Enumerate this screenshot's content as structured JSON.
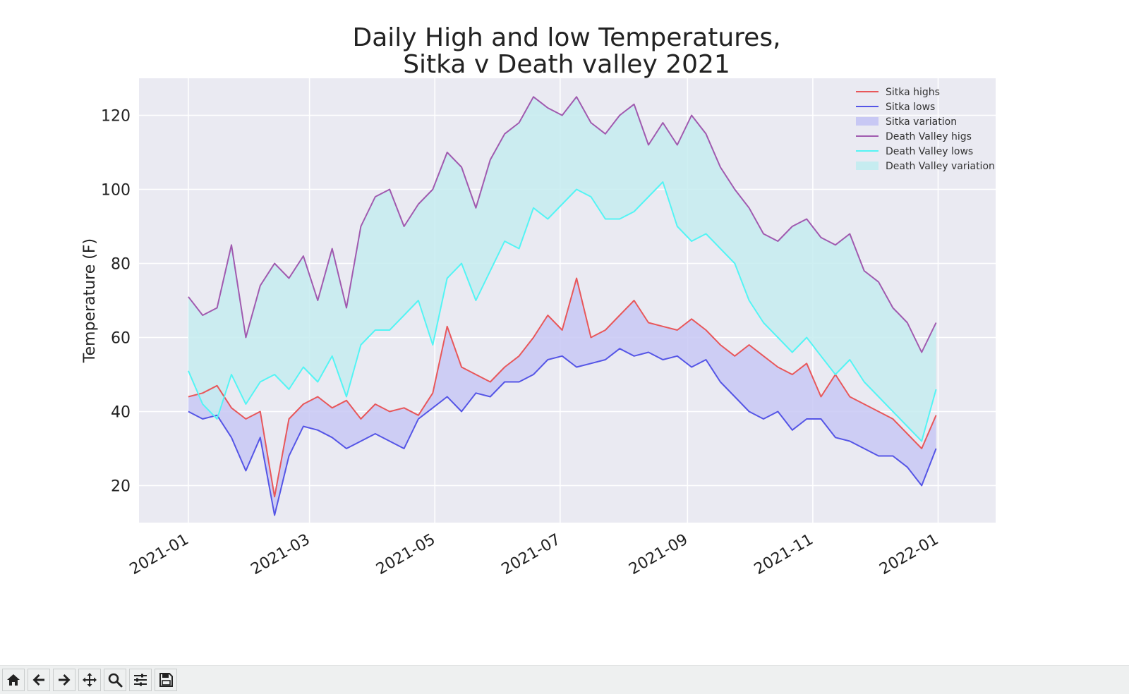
{
  "toolbar": {
    "buttons": [
      {
        "name": "home-icon"
      },
      {
        "name": "back-icon"
      },
      {
        "name": "forward-icon"
      },
      {
        "name": "pan-icon"
      },
      {
        "name": "zoom-icon"
      },
      {
        "name": "configure-subplots-icon"
      },
      {
        "name": "save-icon"
      }
    ]
  },
  "chart_data": {
    "type": "line",
    "title": [
      "Daily High and low Temperatures,",
      "Sitka v Death valley 2021"
    ],
    "xlabel": "",
    "ylabel": "Temperature (F)",
    "xlim": [
      "2020-12-08",
      "2022-01-29"
    ],
    "ylim": [
      10,
      130
    ],
    "x_ticks": [
      "2021-01",
      "2021-03",
      "2021-05",
      "2021-07",
      "2021-09",
      "2021-11",
      "2022-01"
    ],
    "y_ticks": [
      20,
      40,
      60,
      80,
      100,
      120
    ],
    "grid": true,
    "legend_position": "top-right",
    "colors": {
      "sitka_high": "#e8575a",
      "sitka_low": "#5555e6",
      "sitka_fill": "#c8c8f4",
      "dv_high": "#a05aaf",
      "dv_low": "#54f4f4",
      "dv_fill": "#c6ecf0",
      "plot_bg": "#eaeaf2"
    },
    "x": [
      "2021-01-01",
      "2021-01-08",
      "2021-01-15",
      "2021-01-22",
      "2021-01-29",
      "2021-02-05",
      "2021-02-12",
      "2021-02-19",
      "2021-02-26",
      "2021-03-05",
      "2021-03-12",
      "2021-03-19",
      "2021-03-26",
      "2021-04-02",
      "2021-04-09",
      "2021-04-16",
      "2021-04-23",
      "2021-04-30",
      "2021-05-07",
      "2021-05-14",
      "2021-05-21",
      "2021-05-28",
      "2021-06-04",
      "2021-06-11",
      "2021-06-18",
      "2021-06-25",
      "2021-07-02",
      "2021-07-09",
      "2021-07-16",
      "2021-07-23",
      "2021-07-30",
      "2021-08-06",
      "2021-08-13",
      "2021-08-20",
      "2021-08-27",
      "2021-09-03",
      "2021-09-10",
      "2021-09-17",
      "2021-09-24",
      "2021-10-01",
      "2021-10-08",
      "2021-10-15",
      "2021-10-22",
      "2021-10-29",
      "2021-11-05",
      "2021-11-12",
      "2021-11-19",
      "2021-11-26",
      "2021-12-03",
      "2021-12-10",
      "2021-12-17",
      "2021-12-24",
      "2021-12-31"
    ],
    "series": [
      {
        "name": "Sitka highs",
        "key": "sitka_high",
        "values": [
          44,
          45,
          47,
          41,
          38,
          40,
          17,
          38,
          42,
          44,
          41,
          43,
          38,
          42,
          40,
          41,
          39,
          45,
          63,
          52,
          50,
          48,
          52,
          55,
          60,
          66,
          62,
          76,
          60,
          62,
          66,
          70,
          64,
          63,
          62,
          65,
          62,
          58,
          55,
          58,
          55,
          52,
          50,
          53,
          44,
          50,
          44,
          42,
          40,
          38,
          34,
          30,
          39
        ]
      },
      {
        "name": "Sitka lows",
        "key": "sitka_low",
        "values": [
          40,
          38,
          39,
          33,
          24,
          33,
          12,
          28,
          36,
          35,
          33,
          30,
          32,
          34,
          32,
          30,
          38,
          41,
          44,
          40,
          45,
          44,
          48,
          48,
          50,
          54,
          55,
          52,
          53,
          54,
          57,
          55,
          56,
          54,
          55,
          52,
          54,
          48,
          44,
          40,
          38,
          40,
          35,
          38,
          38,
          33,
          32,
          30,
          28,
          28,
          25,
          20,
          30
        ]
      },
      {
        "name": "Death Valley higs",
        "key": "dv_high",
        "values": [
          71,
          66,
          68,
          85,
          60,
          74,
          80,
          76,
          82,
          70,
          84,
          68,
          90,
          98,
          100,
          90,
          96,
          100,
          110,
          106,
          95,
          108,
          115,
          118,
          125,
          122,
          120,
          125,
          118,
          115,
          120,
          123,
          112,
          118,
          112,
          120,
          115,
          106,
          100,
          95,
          88,
          86,
          90,
          92,
          87,
          85,
          88,
          78,
          75,
          68,
          64,
          56,
          64
        ]
      },
      {
        "name": "Death Valley lows",
        "key": "dv_low",
        "values": [
          51,
          42,
          38,
          50,
          42,
          48,
          50,
          46,
          52,
          48,
          55,
          44,
          58,
          62,
          62,
          66,
          70,
          58,
          76,
          80,
          70,
          78,
          86,
          84,
          95,
          92,
          96,
          100,
          98,
          92,
          92,
          94,
          98,
          102,
          90,
          86,
          88,
          84,
          80,
          70,
          64,
          60,
          56,
          60,
          55,
          50,
          54,
          48,
          44,
          40,
          36,
          32,
          46
        ]
      }
    ],
    "fills": [
      {
        "name": "Sitka variation",
        "key": "sitka_fill",
        "between": [
          "Sitka highs",
          "Sitka lows"
        ]
      },
      {
        "name": "Death Valley variation",
        "key": "dv_fill",
        "between": [
          "Death Valley higs",
          "Death Valley lows"
        ]
      }
    ],
    "legend": [
      "Sitka highs",
      "Sitka lows",
      "Sitka variation",
      "Death Valley higs",
      "Death Valley lows",
      "Death Valley variation"
    ]
  }
}
